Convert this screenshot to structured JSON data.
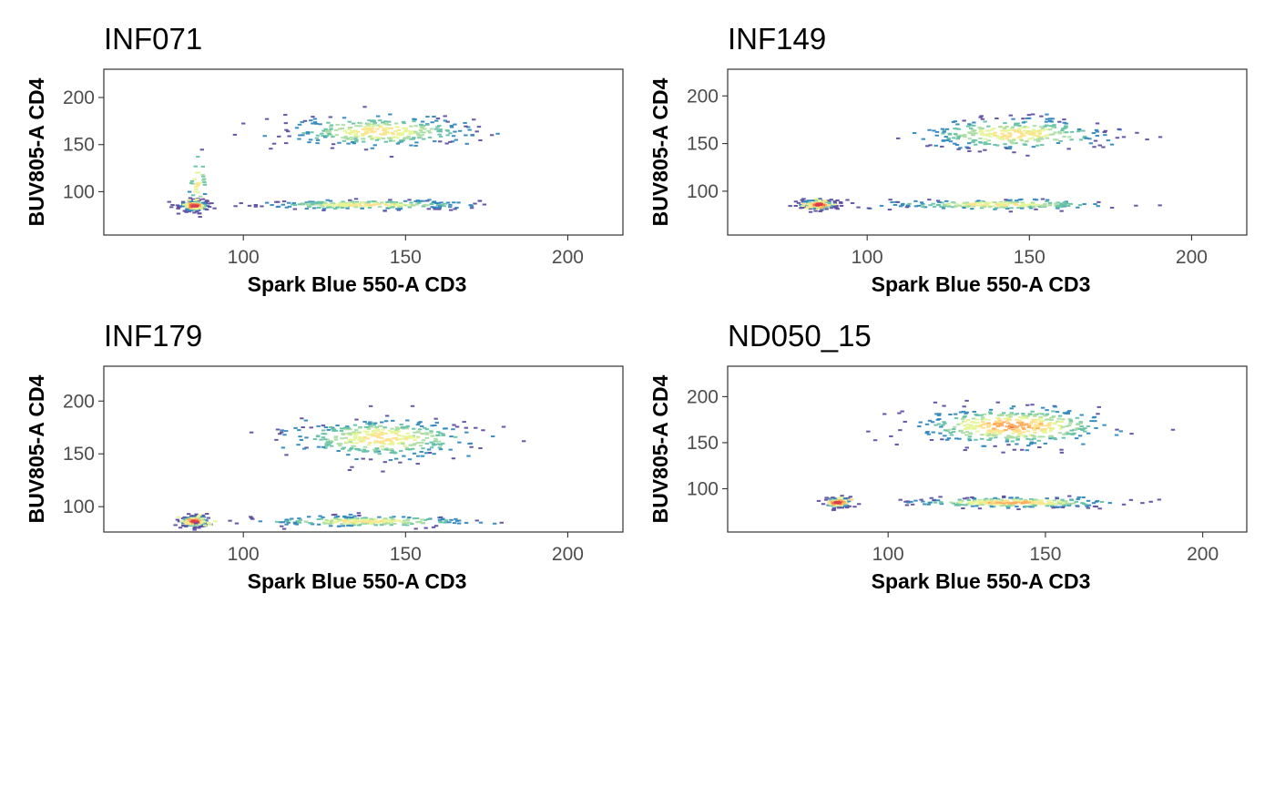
{
  "chart_data": [
    {
      "type": "scatter",
      "style": "2d-density-hexbin",
      "title": "INF071",
      "xlabel": "Spark Blue 550-A CD3",
      "ylabel": "BUV805-A CD4",
      "xlim": [
        57,
        217
      ],
      "ylim": [
        54,
        230
      ],
      "xticks": [
        100,
        150,
        200
      ],
      "yticks": [
        100,
        150,
        200
      ],
      "grid": false,
      "clusters": [
        {
          "name": "CD3-low CD4-low",
          "cx": 85,
          "cy": 85,
          "sx": 2.5,
          "sy": 3,
          "n": 140,
          "density": "very high"
        },
        {
          "name": "CD3-low CD4 tail",
          "cx": 86,
          "cy": 110,
          "sx": 1.5,
          "sy": 16,
          "n": 30,
          "density": "low"
        },
        {
          "name": "CD3+ CD4-",
          "cx": 138,
          "cy": 86,
          "sx": 16,
          "sy": 2.5,
          "n": 260,
          "density": "medium"
        },
        {
          "name": "CD3+ CD4+",
          "cx": 142,
          "cy": 164,
          "sx": 14,
          "sy": 8,
          "n": 320,
          "density": "medium"
        }
      ]
    },
    {
      "type": "scatter",
      "style": "2d-density-hexbin",
      "title": "INF149",
      "xlabel": "Spark Blue 550-A CD3",
      "ylabel": "BUV805-A CD4",
      "xlim": [
        57,
        217
      ],
      "ylim": [
        54,
        228
      ],
      "xticks": [
        100,
        150,
        200
      ],
      "yticks": [
        100,
        150,
        200
      ],
      "grid": false,
      "clusters": [
        {
          "name": "CD3-low CD4-low",
          "cx": 85,
          "cy": 86,
          "sx": 3,
          "sy": 3,
          "n": 120,
          "density": "very high"
        },
        {
          "name": "CD3+ CD4-",
          "cx": 140,
          "cy": 86,
          "sx": 16,
          "sy": 2.5,
          "n": 230,
          "density": "medium"
        },
        {
          "name": "CD3+ CD4+",
          "cx": 145,
          "cy": 160,
          "sx": 14,
          "sy": 8,
          "n": 320,
          "density": "medium"
        }
      ]
    },
    {
      "type": "scatter",
      "style": "2d-density-hexbin",
      "title": "INF179",
      "xlabel": "Spark Blue 550-A CD3",
      "ylabel": "BUV805-A CD4",
      "xlim": [
        57,
        217
      ],
      "ylim": [
        76,
        233
      ],
      "xticks": [
        100,
        150,
        200
      ],
      "yticks": [
        100,
        150,
        200
      ],
      "grid": false,
      "clusters": [
        {
          "name": "CD3-low CD4-low",
          "cx": 85,
          "cy": 86,
          "sx": 2.5,
          "sy": 3,
          "n": 130,
          "density": "very high"
        },
        {
          "name": "CD3+ CD4-",
          "cx": 138,
          "cy": 86,
          "sx": 16,
          "sy": 2.5,
          "n": 240,
          "density": "medium"
        },
        {
          "name": "CD3+ CD4+",
          "cx": 143,
          "cy": 165,
          "sx": 14,
          "sy": 9,
          "n": 380,
          "density": "medium"
        }
      ]
    },
    {
      "type": "scatter",
      "style": "2d-density-hexbin",
      "title": "ND050_15",
      "xlabel": "Spark Blue 550-A CD3",
      "ylabel": "BUV805-A CD4",
      "xlim": [
        49,
        214
      ],
      "ylim": [
        53,
        233
      ],
      "xticks": [
        100,
        150,
        200
      ],
      "yticks": [
        100,
        150,
        200
      ],
      "grid": false,
      "clusters": [
        {
          "name": "CD3-low CD4-low",
          "cx": 84,
          "cy": 85,
          "sx": 2.5,
          "sy": 3,
          "n": 80,
          "density": "very high"
        },
        {
          "name": "CD3+ CD4-",
          "cx": 140,
          "cy": 85,
          "sx": 15,
          "sy": 2.5,
          "n": 300,
          "density": "high"
        },
        {
          "name": "CD3+ CD4+",
          "cx": 140,
          "cy": 168,
          "sx": 15,
          "sy": 10,
          "n": 450,
          "density": "high"
        }
      ]
    }
  ],
  "colors": {
    "density_scale": [
      "#5e4fa2",
      "#3288bd",
      "#66c2a5",
      "#abdda4",
      "#e6f598",
      "#fee08b",
      "#fdae61",
      "#f46d43",
      "#d53e4f"
    ],
    "frame": "#333333",
    "tick_label": "#4d4d4d"
  }
}
